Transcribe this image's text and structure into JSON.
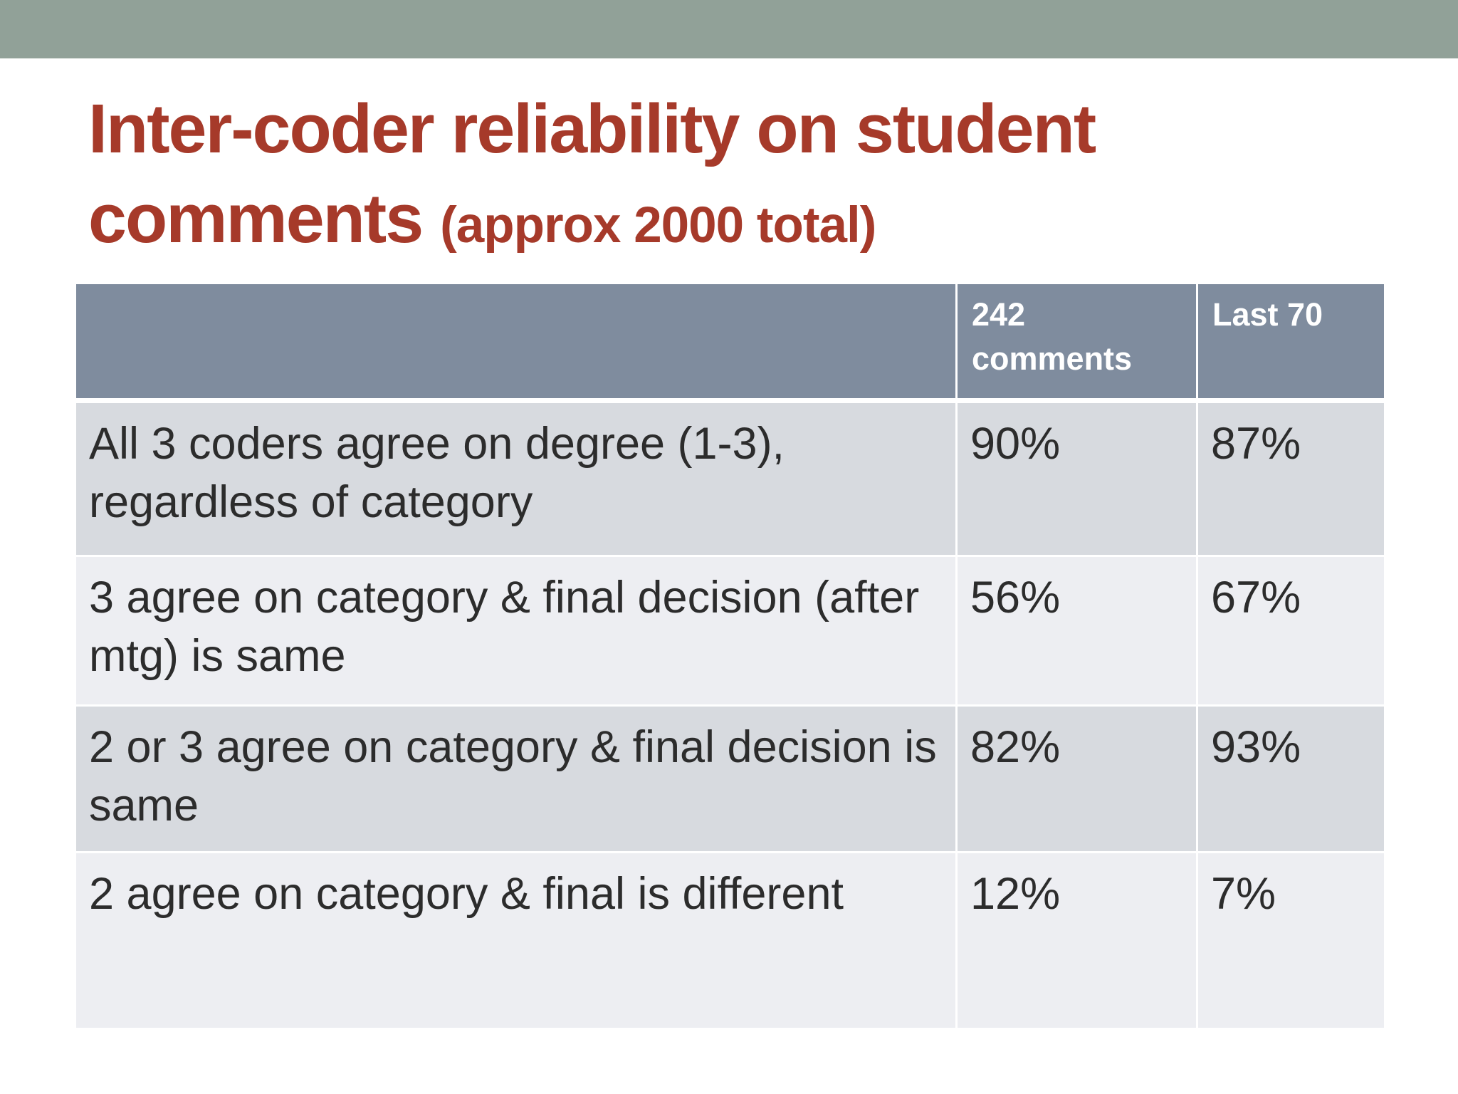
{
  "slide": {
    "title": "Inter-coder reliability on student comments",
    "subtitle": "(approx 2000 total)"
  },
  "table": {
    "headers": [
      "",
      "242 comments",
      "Last 70"
    ],
    "rows": [
      {
        "label": "All 3 coders agree on degree (1-3), regardless of category",
        "c242": "90%",
        "last70": "87%"
      },
      {
        "label": "3 agree on category & final decision (after mtg) is same",
        "c242": "56%",
        "last70": "67%"
      },
      {
        "label": "2 or 3 agree on category & final decision is same",
        "c242": "82%",
        "last70": "93%"
      },
      {
        "label": "2 agree on category & final is different",
        "c242": "12%",
        "last70": "7%"
      }
    ]
  },
  "colors": {
    "top_band": "#91a198",
    "title": "#a63a2a",
    "header_bg": "#7f8c9e",
    "row_dark": "#d7dadf",
    "row_light": "#edeef2",
    "body_text": "#2c2c2c"
  }
}
